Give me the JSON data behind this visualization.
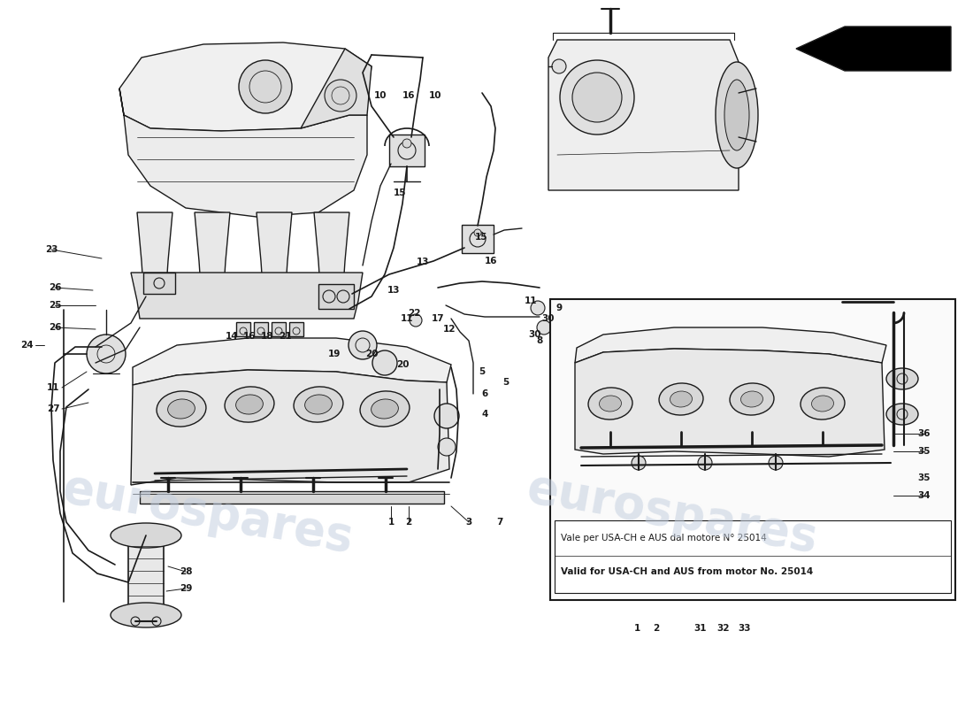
{
  "bg_color": "#ffffff",
  "line_color": "#1a1a1a",
  "watermark_color": "#c5d0e0",
  "note_line1": "Vale per USA-CH e AUS dal motore N° 25014",
  "note_line2": "Valid for USA-CH and AUS from motor No. 25014",
  "fig_width": 11.0,
  "fig_height": 8.0,
  "dpi": 100
}
